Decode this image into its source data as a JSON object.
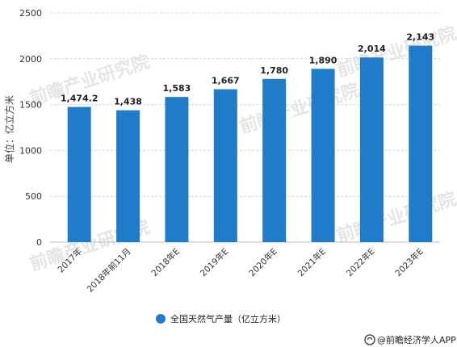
{
  "chart_data": {
    "type": "bar",
    "categories": [
      "2017年",
      "2018年前11月",
      "2018年E",
      "2019年E",
      "2020年E",
      "2021年E",
      "2022年E",
      "2023年E"
    ],
    "values": [
      1474.2,
      1438,
      1583,
      1667,
      1780,
      1890,
      2014,
      2143
    ],
    "value_labels": [
      "1,474.2",
      "1,438",
      "1,583",
      "1,667",
      "1,780",
      "1,890",
      "2,014",
      "2,143"
    ],
    "title": "",
    "xlabel": "",
    "ylabel": "单位：亿立方米",
    "ylim": [
      0,
      2500
    ],
    "yticks": [
      0,
      500,
      1000,
      1500,
      2000,
      2500
    ],
    "grid": true,
    "legend_position": "bottom",
    "series": [
      {
        "name": "全国天然气产量（亿立方米）",
        "color": "#1f7cc8"
      }
    ]
  },
  "credit": {
    "icon": "qianzhan-logo-icon",
    "text": "@前瞻经济学人APP"
  },
  "watermark": {
    "text": "前瞻产业研究院"
  }
}
